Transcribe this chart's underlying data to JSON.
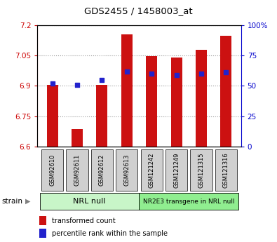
{
  "title": "GDS2455 / 1458003_at",
  "samples": [
    "GSM92610",
    "GSM92611",
    "GSM92612",
    "GSM92613",
    "GSM121242",
    "GSM121249",
    "GSM121315",
    "GSM121316"
  ],
  "transformed_counts": [
    6.905,
    6.685,
    6.905,
    7.155,
    7.048,
    7.042,
    7.08,
    7.15
  ],
  "percentile_ranks": [
    52,
    51,
    55,
    62,
    60,
    59,
    60,
    61
  ],
  "groups": [
    {
      "label": "NRL null",
      "indices": [
        0,
        1,
        2,
        3
      ],
      "color": "#c8f5c8"
    },
    {
      "label": "NR2E3 transgene in NRL null",
      "indices": [
        4,
        5,
        6,
        7
      ],
      "color": "#90ee90"
    }
  ],
  "ylim_left": [
    6.6,
    7.2
  ],
  "ylim_right": [
    0,
    100
  ],
  "yticks_left": [
    6.6,
    6.75,
    6.9,
    7.05,
    7.2
  ],
  "yticks_right": [
    0,
    25,
    50,
    75,
    100
  ],
  "ytick_labels_left": [
    "6.6",
    "6.75",
    "6.9",
    "7.05",
    "7.2"
  ],
  "ytick_labels_right": [
    "0",
    "25",
    "50",
    "75",
    "100%"
  ],
  "bar_color": "#cc1111",
  "dot_color": "#2222cc",
  "bar_bottom": 6.6,
  "grid_color": "#999999",
  "axis_color_left": "#cc0000",
  "axis_color_right": "#0000cc",
  "legend_items": [
    {
      "label": "transformed count",
      "color": "#cc1111"
    },
    {
      "label": "percentile rank within the sample",
      "color": "#2222cc"
    }
  ],
  "strain_label": "strain",
  "xlabel_bg": "#d0d0d0",
  "dot_size": 20,
  "bar_width": 0.45
}
